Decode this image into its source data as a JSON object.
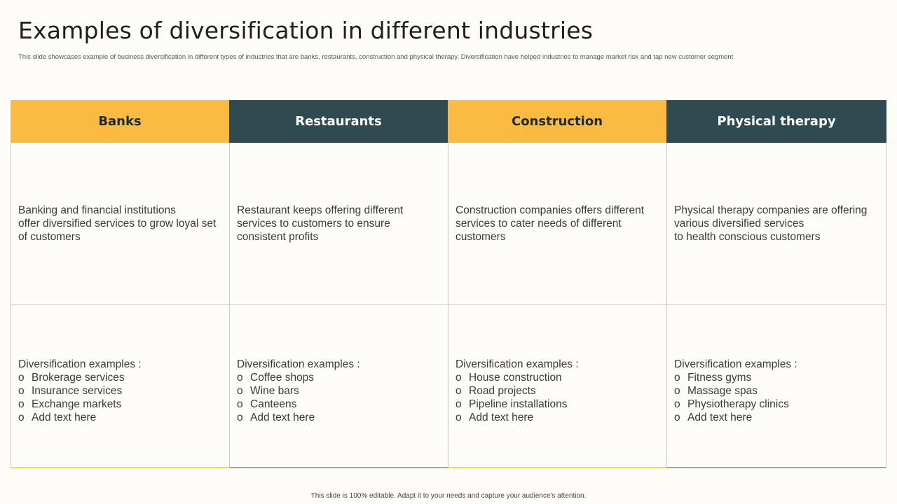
{
  "slide": {
    "title": "Examples of diversification in different industries",
    "subtitle": "This slide showcases example of business diversification in different types of industries that are banks, restaurants, construction and physical therapy. Diversification have helped industries to manage market risk and tap new customer segment",
    "footer": "This slide is 100% editable.  Adapt it to your needs and capture your audience's attention."
  },
  "colors": {
    "yellow": "#fbbb42",
    "dark_teal": "#2f4a50",
    "background": "#fdfcf8"
  },
  "bullet_symbol": "o",
  "columns": [
    {
      "header": "Banks",
      "description": "Banking and financial institutions\noffer diversified services to grow loyal set of customers",
      "examples_label": "Diversification examples :",
      "examples": [
        "Brokerage services",
        "Insurance  services",
        "Exchange markets",
        "Add text here"
      ]
    },
    {
      "header": "Restaurants",
      "description": "Restaurant keeps offering different services to customers to ensure consistent profits",
      "examples_label": "Diversification examples :",
      "examples": [
        "Coffee shops",
        "Wine bars",
        "Canteens",
        "Add text here"
      ]
    },
    {
      "header": "Construction",
      "description": "Construction companies offers different services to cater needs of different customers",
      "examples_label": "Diversification examples :",
      "examples": [
        "House construction",
        "Road projects",
        "Pipeline installations",
        "Add text here"
      ]
    },
    {
      "header": "Physical therapy",
      "description": "Physical therapy companies are offering various diversified services\nto health conscious customers",
      "examples_label": "Diversification examples :",
      "examples": [
        "Fitness gyms",
        "Massage spas",
        "Physiotherapy clinics",
        "Add text here"
      ]
    }
  ]
}
